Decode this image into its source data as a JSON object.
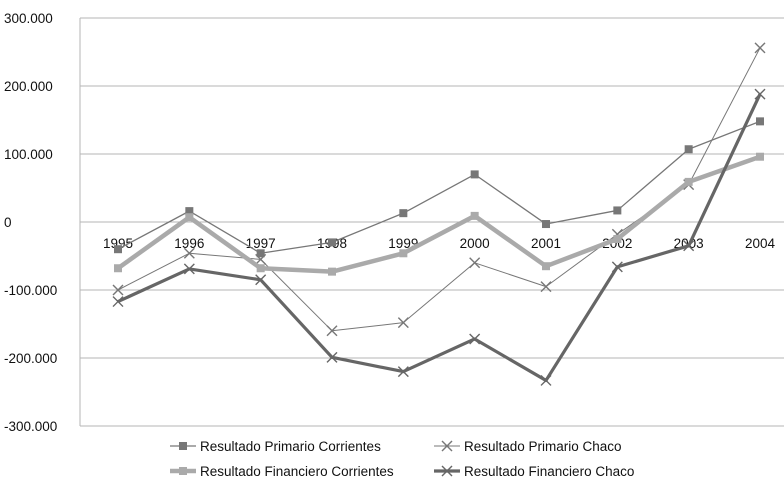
{
  "chart_data": {
    "type": "line",
    "title": "",
    "xlabel": "",
    "ylabel": "",
    "categories": [
      "1995",
      "1996",
      "1997",
      "1998",
      "1999",
      "2000",
      "2001",
      "2002",
      "2003",
      "2004"
    ],
    "ylim": [
      -300000,
      300000
    ],
    "yticks": [
      300000,
      200000,
      100000,
      0,
      -100000,
      -200000,
      -300000
    ],
    "ytick_labels": [
      "300.000",
      "200.000",
      "100.000",
      "0",
      "-100.000",
      "-200.000",
      "-300.000"
    ],
    "grid": "horizontal",
    "legend_position": "bottom",
    "series": [
      {
        "name": "Resultado Primario Corrientes",
        "color": "#777777",
        "marker": "square",
        "values": [
          -40000,
          16000,
          -46000,
          -30000,
          13000,
          70000,
          -3000,
          17000,
          107000,
          148000
        ]
      },
      {
        "name": "Resultado Primario Chaco",
        "color": "#777777",
        "marker": "x",
        "values": [
          -100000,
          -46000,
          -55000,
          -160000,
          -148000,
          -60000,
          -95000,
          -18000,
          55000,
          256000
        ]
      },
      {
        "name": "Resultado Financiero Corrientes",
        "color": "#aaaaaa",
        "marker": "square",
        "values": [
          -68000,
          7000,
          -68000,
          -73000,
          -46000,
          9000,
          -65000,
          -25000,
          59000,
          96000
        ]
      },
      {
        "name": "Resultado Financiero Chaco",
        "color": "#666666",
        "marker": "x",
        "values": [
          -117000,
          -69000,
          -85000,
          -199000,
          -220000,
          -172000,
          -233000,
          -66000,
          -35000,
          188000
        ]
      }
    ]
  }
}
